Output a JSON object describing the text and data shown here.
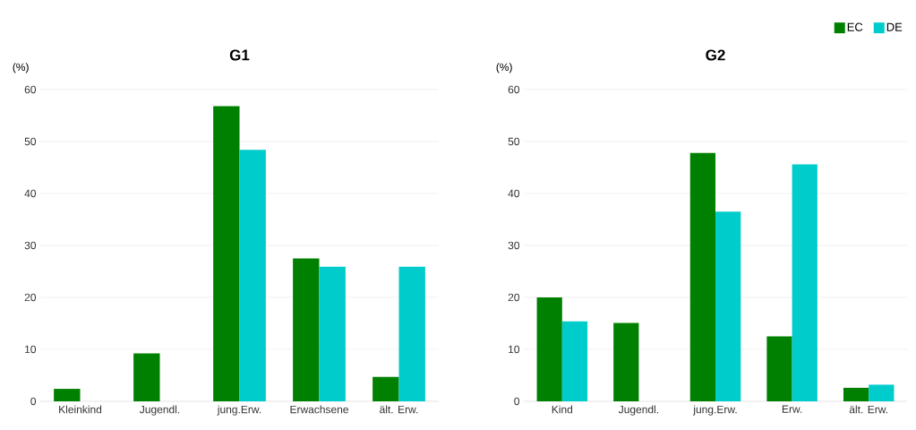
{
  "chart_data": [
    {
      "type": "bar",
      "title": "G1",
      "ylabel": "(%)",
      "categories": [
        "Kleinkind",
        "Jugendl.",
        "jung.Erw.",
        "Erwachsene",
        "ält. Erw."
      ],
      "series": [
        {
          "color": "#008000",
          "values": [
            2.4,
            9.2,
            56.8,
            27.5,
            4.7
          ]
        },
        {
          "color": "#00cccc",
          "values": [
            0,
            0,
            48.4,
            25.9,
            25.9
          ]
        }
      ],
      "ylim": [
        0,
        60
      ],
      "yticks": [
        0,
        10,
        20,
        30,
        40,
        50,
        60
      ],
      "grid": "y"
    },
    {
      "type": "bar",
      "title": "G2",
      "ylabel": "(%)",
      "categories": [
        "Kind",
        "Jugendl.",
        "jung.Erw.",
        "Erw.",
        "ält. Erw."
      ],
      "series": [
        {
          "name": "EC",
          "color": "#008000",
          "values": [
            20.0,
            15.1,
            47.8,
            12.5,
            2.6
          ]
        },
        {
          "name": "DE",
          "color": "#00cccc",
          "values": [
            15.4,
            0,
            36.5,
            45.6,
            3.2
          ]
        }
      ],
      "ylim": [
        0,
        60
      ],
      "yticks": [
        0,
        10,
        20,
        30,
        40,
        50,
        60
      ],
      "grid": "y",
      "legend": "top right"
    }
  ]
}
